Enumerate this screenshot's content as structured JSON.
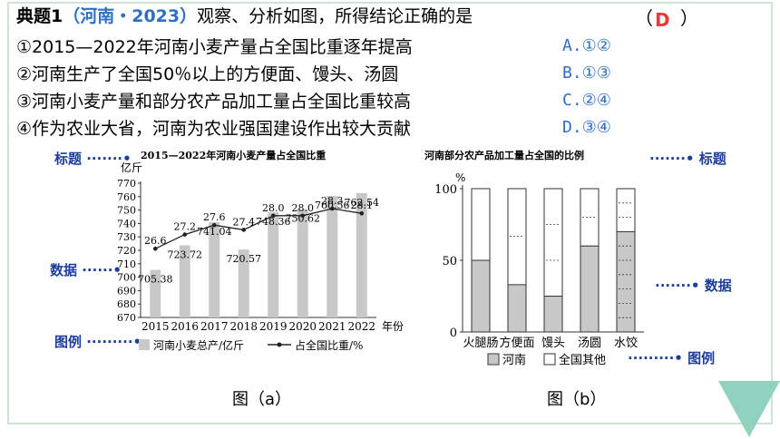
{
  "question": {
    "label": "典题1",
    "source": "（河南・2023）",
    "stem": "观察、分析如图，所得结论正确的是",
    "paren_left": "（",
    "paren_right": "）",
    "answer": "D",
    "statements": [
      "①2015—2022年河南小麦产量占全国比重逐年提高",
      "②河南生产了全国50％以上的方便面、馒头、汤圆",
      "③河南小麦产量和部分农产品加工量占全国比重较高",
      "④作为农业大省，河南为农业强国建设作出较大贡献"
    ],
    "options": [
      "A.①②",
      "B.①③",
      "C.②④",
      "D.③④"
    ]
  },
  "annotations": {
    "title_left": "标题",
    "data_left": "数据",
    "legend_left": "图例",
    "title_right": "标题",
    "data_right": "数据",
    "legend_right": "图例"
  },
  "captions": {
    "a": "图（a）",
    "b": "图（b）"
  },
  "chart_data": [
    {
      "type": "bar",
      "title": "2015—2022年河南小麦产量占全国比重",
      "ylabel": "亿斤",
      "xlabel": "年份",
      "ylim": [
        670,
        770
      ],
      "yticks": [
        670,
        680,
        690,
        700,
        710,
        720,
        730,
        740,
        750,
        760,
        770
      ],
      "categories": [
        "2015",
        "2016",
        "2017",
        "2018",
        "2019",
        "2020",
        "2021",
        "2022"
      ],
      "series": [
        {
          "name": "河南小麦总产/亿斤",
          "type": "bar",
          "values": [
            705.38,
            723.72,
            741.04,
            720.57,
            748.36,
            750.62,
            760.56,
            762.54
          ],
          "labels": [
            "705.38",
            "723.72",
            "741.04",
            "720.57",
            "748.36",
            "750.62",
            "760.56",
            "762.54"
          ]
        },
        {
          "name": "占全国比重/%",
          "type": "line",
          "values": [
            26.6,
            27.2,
            27.6,
            27.4,
            28.0,
            28.0,
            28.3,
            28.1
          ],
          "labels": [
            "26.6",
            "27.2",
            "27.6",
            "27.4",
            "28.0",
            "28.0",
            "28.3",
            "28.1"
          ]
        }
      ],
      "colors": {
        "bar": "#c8c8c8",
        "line": "#222222"
      }
    },
    {
      "type": "bar",
      "title": "河南部分农产品加工量占全国的比例",
      "ylabel": "%",
      "ylim": [
        0,
        100
      ],
      "yticks": [
        0,
        50,
        100
      ],
      "categories": [
        "火腿肠",
        "方便面",
        "馒头",
        "汤圆",
        "水饺"
      ],
      "series": [
        {
          "name": "河南",
          "values": [
            50,
            33,
            25,
            60,
            70
          ]
        },
        {
          "name": "全国其他",
          "values": [
            50,
            67,
            75,
            40,
            30
          ]
        }
      ],
      "colors": {
        "河南": "#c8c8c8",
        "全国其他": "#ffffff"
      }
    }
  ]
}
